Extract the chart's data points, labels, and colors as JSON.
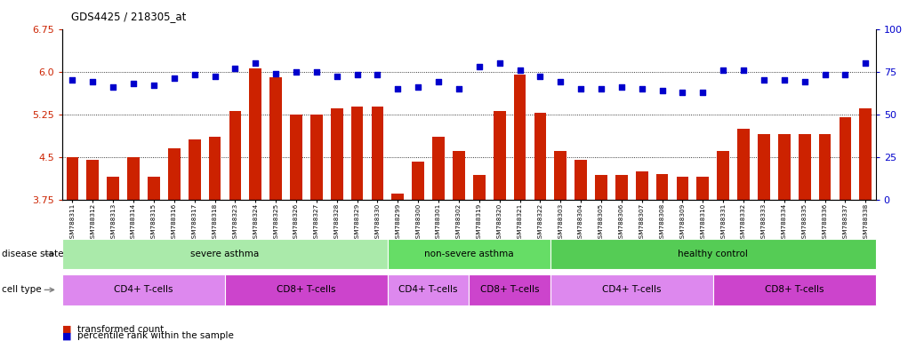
{
  "title": "GDS4425 / 218305_at",
  "samples": [
    "GSM788311",
    "GSM788312",
    "GSM788313",
    "GSM788314",
    "GSM788315",
    "GSM788316",
    "GSM788317",
    "GSM788318",
    "GSM788323",
    "GSM788324",
    "GSM788325",
    "GSM788326",
    "GSM788327",
    "GSM788328",
    "GSM788329",
    "GSM788330",
    "GSM788299",
    "GSM788300",
    "GSM788301",
    "GSM788302",
    "GSM788319",
    "GSM788320",
    "GSM788321",
    "GSM788322",
    "GSM788303",
    "GSM788304",
    "GSM788305",
    "GSM788306",
    "GSM788307",
    "GSM788308",
    "GSM788309",
    "GSM788310",
    "GSM788331",
    "GSM788332",
    "GSM788333",
    "GSM788334",
    "GSM788335",
    "GSM788336",
    "GSM788337",
    "GSM788338"
  ],
  "bar_values": [
    4.5,
    4.45,
    4.15,
    4.5,
    4.15,
    4.65,
    4.8,
    4.85,
    5.3,
    6.05,
    5.9,
    5.25,
    5.25,
    5.35,
    5.38,
    5.38,
    3.85,
    4.42,
    4.85,
    4.6,
    4.18,
    5.3,
    5.95,
    5.28,
    4.6,
    4.45,
    4.18,
    4.18,
    4.25,
    4.2,
    4.15,
    4.15,
    4.6,
    5.0,
    4.9,
    4.9,
    4.9,
    4.9,
    5.2,
    5.35
  ],
  "percentile_values": [
    70,
    69,
    66,
    68,
    67,
    71,
    73,
    72,
    77,
    80,
    74,
    75,
    75,
    72,
    73,
    73,
    65,
    66,
    69,
    65,
    78,
    80,
    76,
    72,
    69,
    65,
    65,
    66,
    65,
    64,
    63,
    63,
    76,
    76,
    70,
    70,
    69,
    73,
    73,
    80
  ],
  "ylim_left": [
    3.75,
    6.75
  ],
  "ylim_right": [
    0,
    100
  ],
  "yticks_left": [
    3.75,
    4.5,
    5.25,
    6.0,
    6.75
  ],
  "yticks_right": [
    0,
    25,
    50,
    75,
    100
  ],
  "bar_color": "#cc2200",
  "dot_color": "#0000cc",
  "disease_state_groups": [
    {
      "label": "severe asthma",
      "start": 0,
      "end": 16,
      "color": "#aaeaaa"
    },
    {
      "label": "non-severe asthma",
      "start": 16,
      "end": 24,
      "color": "#66dd66"
    },
    {
      "label": "healthy control",
      "start": 24,
      "end": 40,
      "color": "#55cc55"
    }
  ],
  "cell_type_groups": [
    {
      "label": "CD4+ T-cells",
      "start": 0,
      "end": 8,
      "color": "#dd88ee"
    },
    {
      "label": "CD8+ T-cells",
      "start": 8,
      "end": 16,
      "color": "#cc44cc"
    },
    {
      "label": "CD4+ T-cells",
      "start": 16,
      "end": 20,
      "color": "#dd88ee"
    },
    {
      "label": "CD8+ T-cells",
      "start": 20,
      "end": 24,
      "color": "#cc44cc"
    },
    {
      "label": "CD4+ T-cells",
      "start": 24,
      "end": 32,
      "color": "#dd88ee"
    },
    {
      "label": "CD8+ T-cells",
      "start": 32,
      "end": 40,
      "color": "#cc44cc"
    }
  ],
  "legend_items": [
    {
      "label": "transformed count",
      "color": "#cc2200"
    },
    {
      "label": "percentile rank within the sample",
      "color": "#0000cc"
    }
  ],
  "hgrid_lines": [
    4.5,
    5.25,
    6.0
  ],
  "background_color": "#ffffff"
}
